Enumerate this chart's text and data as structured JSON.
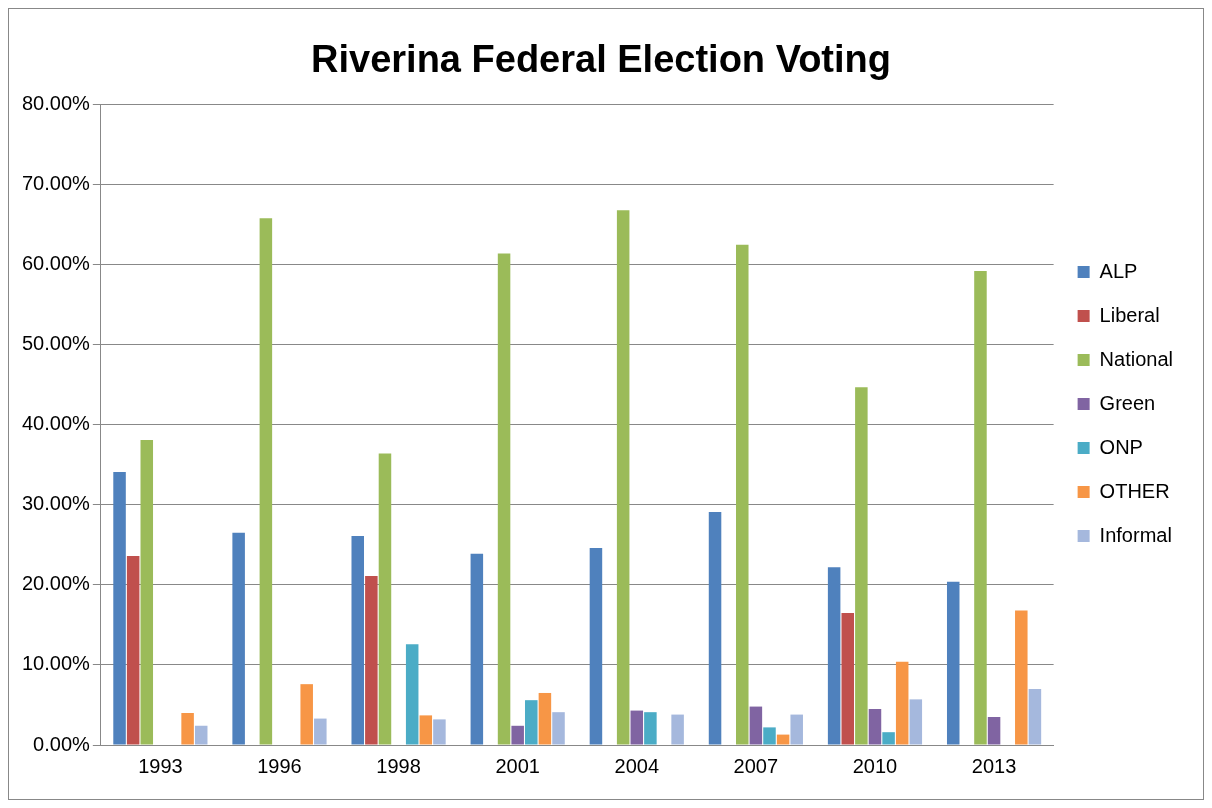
{
  "chart_data": {
    "type": "bar",
    "title": "Riverina Federal Election Voting",
    "categories": [
      "1993",
      "1996",
      "1998",
      "2001",
      "2004",
      "2007",
      "2010",
      "2013"
    ],
    "series": [
      {
        "name": "ALP",
        "color": "#4f81bd",
        "values": [
          34.1,
          26.5,
          26.1,
          23.9,
          24.6,
          29.1,
          22.2,
          20.4
        ]
      },
      {
        "name": "Liberal",
        "color": "#c0504d",
        "values": [
          23.6,
          null,
          21.1,
          null,
          null,
          null,
          16.5,
          null
        ]
      },
      {
        "name": "National",
        "color": "#9bbb59",
        "values": [
          38.1,
          65.8,
          36.4,
          61.4,
          66.8,
          62.5,
          44.7,
          59.2
        ]
      },
      {
        "name": "Green",
        "color": "#8064a2",
        "values": [
          null,
          null,
          null,
          2.4,
          4.3,
          4.8,
          4.5,
          3.5
        ]
      },
      {
        "name": "ONP",
        "color": "#4bacc6",
        "values": [
          null,
          null,
          12.6,
          5.6,
          4.1,
          2.2,
          1.6,
          null
        ]
      },
      {
        "name": "OTHER",
        "color": "#f79646",
        "values": [
          4.0,
          7.6,
          3.7,
          6.5,
          null,
          1.3,
          10.4,
          16.8
        ]
      },
      {
        "name": "Informal",
        "color": "#a5b8dd",
        "values": [
          2.4,
          3.3,
          3.2,
          4.1,
          3.8,
          3.8,
          5.7,
          7.0
        ]
      }
    ],
    "ylim": [
      0,
      80
    ],
    "yticks": [
      {
        "value": 0,
        "label": "0.00%"
      },
      {
        "value": 10,
        "label": "10.00%"
      },
      {
        "value": 20,
        "label": "20.00%"
      },
      {
        "value": 30,
        "label": "30.00%"
      },
      {
        "value": 40,
        "label": "40.00%"
      },
      {
        "value": 50,
        "label": "50.00%"
      },
      {
        "value": 60,
        "label": "60.00%"
      },
      {
        "value": 70,
        "label": "70.00%"
      },
      {
        "value": 80,
        "label": "80.00%"
      }
    ],
    "grid": "y",
    "legend": "right"
  }
}
